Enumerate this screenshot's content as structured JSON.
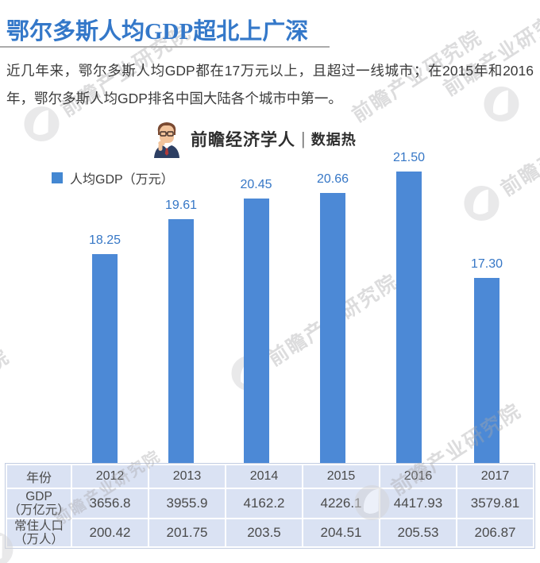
{
  "header": {
    "title": "鄂尔多斯人均GDP超北上广深"
  },
  "intro": {
    "text": "近几年来，鄂尔多斯人均GDP都在17万元以上，且超过一线城市；在2015年和2016年，鄂尔多斯人均GDP排名中国大陆各个城市中第一。"
  },
  "brand": {
    "name": "前瞻经济学人",
    "separator": "|",
    "tagline": "数据热",
    "avatar_icon": "thinking-economist-avatar"
  },
  "chart": {
    "legend_label": "人均GDP（万元）"
  },
  "chart_data": {
    "type": "bar",
    "categories": [
      "2012",
      "2013",
      "2014",
      "2015",
      "2016",
      "2017"
    ],
    "series": [
      {
        "name": "人均GDP（万元）",
        "values": [
          18.25,
          19.61,
          20.45,
          20.66,
          21.5,
          17.3
        ]
      }
    ],
    "data_labels": [
      "18.25",
      "19.61",
      "20.45",
      "20.66",
      "21.50",
      "17.30"
    ],
    "ylim": [
      10,
      22.5
    ],
    "grid": false,
    "axes_visible": false,
    "legend_position": "top-left",
    "bar_color": "#4C89D6",
    "label_color": "#3677C6"
  },
  "table": {
    "header_row": [
      "年份",
      "2012",
      "2013",
      "2014",
      "2015",
      "2016",
      "2017"
    ],
    "rows": [
      {
        "label_line1": "GDP",
        "label_line2": "（万亿元）",
        "values": [
          "3656.8",
          "3955.9",
          "4162.2",
          "4226.1",
          "4417.93",
          "3579.81"
        ]
      },
      {
        "label_line1": "常住人口",
        "label_line2": "（万人）",
        "values": [
          "200.42",
          "201.75",
          "203.5",
          "204.51",
          "205.53",
          "206.87"
        ]
      }
    ]
  },
  "watermark": {
    "text": "前瞻产业研究院",
    "logo_icon": "forward-swoosh-circle"
  },
  "colors": {
    "title": "#3478C9",
    "bar": "#4C89D6",
    "bar_value_label": "#3677C6",
    "table_background": "#DAE2F3",
    "body_text": "#3A3A3A"
  }
}
